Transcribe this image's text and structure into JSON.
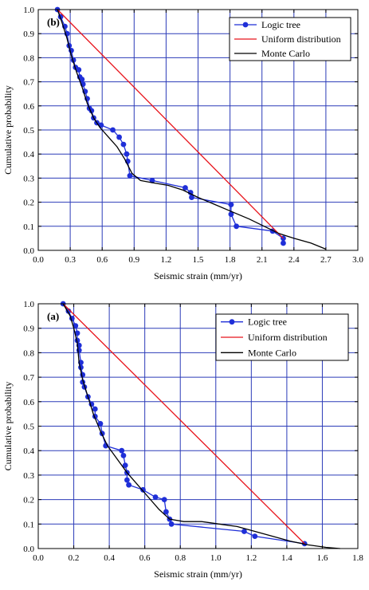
{
  "chart_data": [
    {
      "type": "line",
      "panel_label": "(b)",
      "xlabel": "Seismic strain (mm/yr)",
      "ylabel": "Cumulative probability",
      "xlim": [
        0.0,
        3.0
      ],
      "ylim": [
        0.0,
        1.0
      ],
      "x_ticks": [
        "0.0",
        "0.3",
        "0.6",
        "0.9",
        "1.2",
        "1.5",
        "1.8",
        "2.1",
        "2.4",
        "2.7",
        "3.0"
      ],
      "y_ticks": [
        "0.0",
        "0.1",
        "0.2",
        "0.3",
        "0.4",
        "0.5",
        "0.6",
        "0.7",
        "0.8",
        "0.9",
        "1.0"
      ],
      "grid": true,
      "legend_position": "top-right",
      "series": [
        {
          "name": "Logic tree",
          "color": "#1f2fd8",
          "marker": "circle",
          "points": [
            [
              0.18,
              1.0
            ],
            [
              0.21,
              0.97
            ],
            [
              0.25,
              0.93
            ],
            [
              0.27,
              0.9
            ],
            [
              0.29,
              0.85
            ],
            [
              0.31,
              0.83
            ],
            [
              0.33,
              0.79
            ],
            [
              0.35,
              0.76
            ],
            [
              0.38,
              0.75
            ],
            [
              0.39,
              0.72
            ],
            [
              0.41,
              0.71
            ],
            [
              0.42,
              0.69
            ],
            [
              0.44,
              0.66
            ],
            [
              0.46,
              0.63
            ],
            [
              0.48,
              0.59
            ],
            [
              0.5,
              0.58
            ],
            [
              0.52,
              0.55
            ],
            [
              0.55,
              0.53
            ],
            [
              0.59,
              0.52
            ],
            [
              0.7,
              0.5
            ],
            [
              0.76,
              0.47
            ],
            [
              0.8,
              0.44
            ],
            [
              0.83,
              0.4
            ],
            [
              0.84,
              0.37
            ],
            [
              0.86,
              0.31
            ],
            [
              1.07,
              0.29
            ],
            [
              1.38,
              0.26
            ],
            [
              1.43,
              0.24
            ],
            [
              1.44,
              0.22
            ],
            [
              1.81,
              0.19
            ],
            [
              1.81,
              0.15
            ],
            [
              1.86,
              0.1
            ],
            [
              2.2,
              0.08
            ],
            [
              2.3,
              0.05
            ],
            [
              2.3,
              0.03
            ]
          ]
        },
        {
          "name": "Uniform distribution",
          "color": "#e8141c",
          "points": [
            [
              0.18,
              1.0
            ],
            [
              2.3,
              0.05
            ]
          ]
        },
        {
          "name": "Monte Carlo",
          "color": "#000000",
          "points": [
            [
              0.18,
              1.0
            ],
            [
              0.22,
              0.95
            ],
            [
              0.27,
              0.88
            ],
            [
              0.31,
              0.81
            ],
            [
              0.36,
              0.74
            ],
            [
              0.41,
              0.68
            ],
            [
              0.46,
              0.61
            ],
            [
              0.52,
              0.55
            ],
            [
              0.58,
              0.51
            ],
            [
              0.66,
              0.47
            ],
            [
              0.74,
              0.43
            ],
            [
              0.81,
              0.38
            ],
            [
              0.88,
              0.32
            ],
            [
              0.96,
              0.29
            ],
            [
              1.08,
              0.28
            ],
            [
              1.22,
              0.27
            ],
            [
              1.36,
              0.25
            ],
            [
              1.5,
              0.22
            ],
            [
              1.66,
              0.19
            ],
            [
              1.82,
              0.16
            ],
            [
              1.98,
              0.13
            ],
            [
              2.12,
              0.1
            ],
            [
              2.26,
              0.07
            ],
            [
              2.4,
              0.05
            ],
            [
              2.56,
              0.03
            ],
            [
              2.7,
              0.005
            ]
          ]
        }
      ]
    },
    {
      "type": "line",
      "panel_label": "(a)",
      "xlabel": "Seismic strain (mm/yr)",
      "ylabel": "Cumulative probability",
      "xlim": [
        0.0,
        1.8
      ],
      "ylim": [
        0.0,
        1.0
      ],
      "x_ticks": [
        "0.0",
        "0.2",
        "0.4",
        "0.6",
        "0.8",
        "1.0",
        "1.2",
        "1.4",
        "1.6",
        "1.8"
      ],
      "y_ticks": [
        "0.0",
        "0.1",
        "0.2",
        "0.3",
        "0.4",
        "0.5",
        "0.6",
        "0.7",
        "0.8",
        "0.9",
        "1.0"
      ],
      "grid": true,
      "legend_position": "top-right",
      "series": [
        {
          "name": "Logic tree",
          "color": "#1f2fd8",
          "marker": "circle",
          "points": [
            [
              0.14,
              1.0
            ],
            [
              0.17,
              0.97
            ],
            [
              0.19,
              0.94
            ],
            [
              0.21,
              0.91
            ],
            [
              0.22,
              0.88
            ],
            [
              0.22,
              0.85
            ],
            [
              0.23,
              0.83
            ],
            [
              0.23,
              0.81
            ],
            [
              0.24,
              0.76
            ],
            [
              0.24,
              0.74
            ],
            [
              0.25,
              0.71
            ],
            [
              0.25,
              0.68
            ],
            [
              0.26,
              0.66
            ],
            [
              0.28,
              0.62
            ],
            [
              0.3,
              0.59
            ],
            [
              0.32,
              0.57
            ],
            [
              0.32,
              0.54
            ],
            [
              0.35,
              0.51
            ],
            [
              0.36,
              0.47
            ],
            [
              0.38,
              0.42
            ],
            [
              0.47,
              0.4
            ],
            [
              0.48,
              0.38
            ],
            [
              0.49,
              0.34
            ],
            [
              0.5,
              0.31
            ],
            [
              0.5,
              0.28
            ],
            [
              0.51,
              0.26
            ],
            [
              0.59,
              0.24
            ],
            [
              0.66,
              0.21
            ],
            [
              0.71,
              0.2
            ],
            [
              0.72,
              0.15
            ],
            [
              0.74,
              0.12
            ],
            [
              0.75,
              0.1
            ],
            [
              1.16,
              0.07
            ],
            [
              1.22,
              0.05
            ],
            [
              1.5,
              0.02
            ]
          ]
        },
        {
          "name": "Uniform distribution",
          "color": "#e8141c",
          "points": [
            [
              0.14,
              1.0
            ],
            [
              1.5,
              0.02
            ]
          ]
        },
        {
          "name": "Monte Carlo",
          "color": "#000000",
          "points": [
            [
              0.14,
              1.0
            ],
            [
              0.18,
              0.95
            ],
            [
              0.2,
              0.9
            ],
            [
              0.22,
              0.84
            ],
            [
              0.23,
              0.76
            ],
            [
              0.25,
              0.69
            ],
            [
              0.28,
              0.62
            ],
            [
              0.31,
              0.55
            ],
            [
              0.35,
              0.48
            ],
            [
              0.39,
              0.42
            ],
            [
              0.44,
              0.37
            ],
            [
              0.5,
              0.31
            ],
            [
              0.56,
              0.26
            ],
            [
              0.62,
              0.21
            ],
            [
              0.68,
              0.16
            ],
            [
              0.74,
              0.12
            ],
            [
              0.82,
              0.11
            ],
            [
              0.92,
              0.11
            ],
            [
              1.02,
              0.1
            ],
            [
              1.12,
              0.09
            ],
            [
              1.22,
              0.07
            ],
            [
              1.32,
              0.05
            ],
            [
              1.42,
              0.03
            ],
            [
              1.52,
              0.015
            ],
            [
              1.62,
              0.005
            ],
            [
              1.7,
              0.0
            ]
          ]
        }
      ]
    }
  ]
}
